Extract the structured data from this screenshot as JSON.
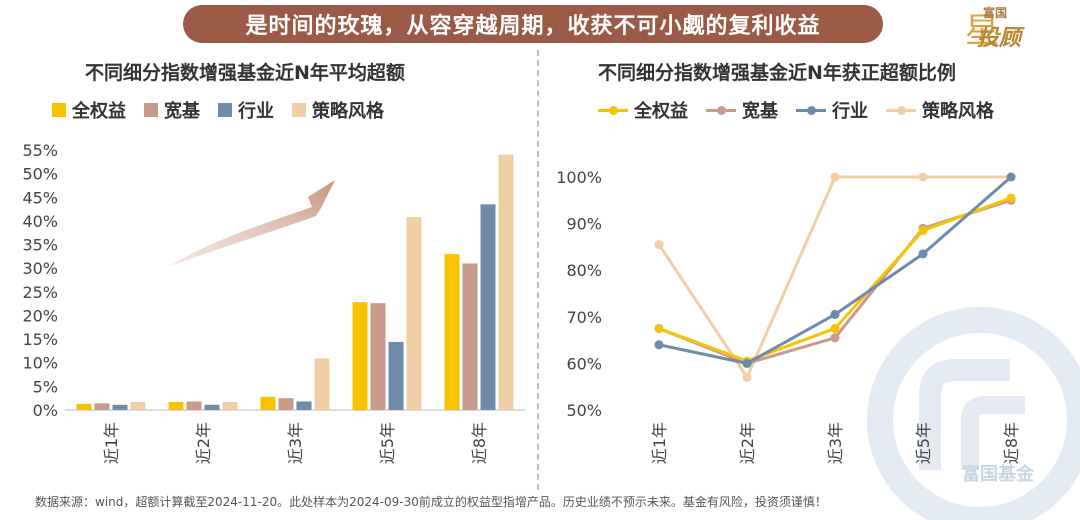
{
  "banner": {
    "text": "是时间的玫瑰，从容穿越周期，收获不可小觑的复利收益"
  },
  "logo": {
    "top": "富国",
    "main": "投顾",
    "star_char": "星"
  },
  "footer": {
    "text": "数据来源：wind，超额计算截至2024-11-20。此处样本为2024-09-30前成立的权益型指增产品。历史业绩不预示未来。基金有风险，投资须谨慎！"
  },
  "watermark": {
    "text": "富国基金"
  },
  "colors": {
    "全权益": "#f8c300",
    "宽基": "#c99a8a",
    "行业": "#6f8bab",
    "策略风格": "#f1cfa5",
    "arrow": "#c8947f"
  },
  "chart_data": [
    {
      "type": "bar",
      "title": "不同细分指数增强基金近N年平均超额",
      "categories": [
        "近1年",
        "近2年",
        "近3年",
        "近5年",
        "近8年"
      ],
      "series": [
        {
          "name": "全权益",
          "values": [
            1.3,
            1.7,
            2.8,
            22.8,
            33.0
          ]
        },
        {
          "name": "宽基",
          "values": [
            1.4,
            1.8,
            2.5,
            22.6,
            31.0
          ]
        },
        {
          "name": "行业",
          "values": [
            1.1,
            1.1,
            1.8,
            14.4,
            43.5
          ]
        },
        {
          "name": "策略风格",
          "values": [
            1.7,
            1.7,
            10.9,
            40.8,
            54.0
          ]
        }
      ],
      "ylim": [
        0,
        55
      ],
      "yticks": [
        "0%",
        "5%",
        "10%",
        "15%",
        "20%",
        "25%",
        "30%",
        "35%",
        "40%",
        "45%",
        "50%",
        "55%"
      ],
      "grid": false,
      "legend": "top"
    },
    {
      "type": "line",
      "title": "不同细分指数增强基金近N年获正超额比例",
      "categories": [
        "近1年",
        "近2年",
        "近3年",
        "近5年",
        "近8年"
      ],
      "series": [
        {
          "name": "全权益",
          "values": [
            67.5,
            60.5,
            67.5,
            88.5,
            95.5
          ]
        },
        {
          "name": "宽基",
          "values": [
            67.5,
            60.0,
            65.5,
            89.0,
            95.0
          ]
        },
        {
          "name": "行业",
          "values": [
            64.0,
            60.0,
            70.5,
            83.5,
            100.0
          ]
        },
        {
          "name": "策略风格",
          "values": [
            85.5,
            57.0,
            100.0,
            100.0,
            100.0
          ]
        }
      ],
      "ylim": [
        50,
        100
      ],
      "yticks": [
        "50%",
        "60%",
        "70%",
        "80%",
        "90%",
        "100%"
      ],
      "grid": false,
      "legend": "top"
    }
  ]
}
